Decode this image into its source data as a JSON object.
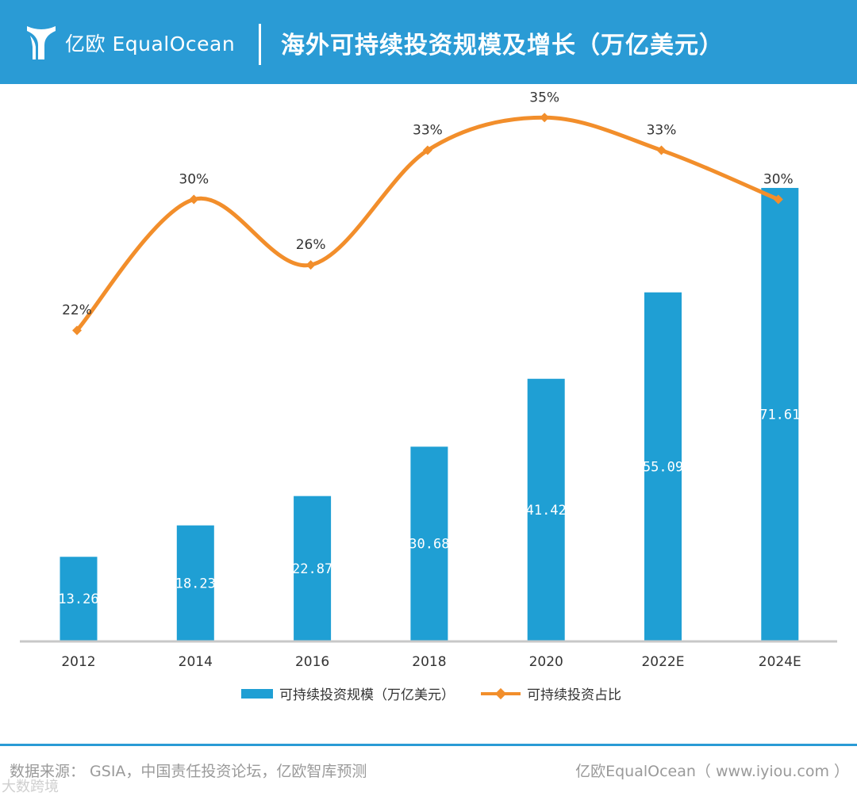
{
  "header": {
    "brand": "亿欧 EqualOcean",
    "title": "海外可持续投资规模及增长（万亿美元）",
    "background": "#2a9bd5"
  },
  "chart_data": {
    "type": "bar",
    "title": "海外可持续投资规模及增长（万亿美元）",
    "categories": [
      "2012",
      "2014",
      "2016",
      "2018",
      "2020",
      "2022E",
      "2024E"
    ],
    "series": [
      {
        "name": "可持续投资规模（万亿美元）",
        "type": "bar",
        "values": [
          13.26,
          18.23,
          22.87,
          30.68,
          41.42,
          55.09,
          71.61
        ],
        "labels": [
          "13.26",
          "18.23",
          "22.87",
          "30.68",
          "41.42",
          "55.09",
          "71.61"
        ],
        "color": "#1f9fd4"
      },
      {
        "name": "可持续投资占比",
        "type": "line",
        "values": [
          22,
          30,
          26,
          33,
          35,
          33,
          30
        ],
        "labels": [
          "22%",
          "30%",
          "26%",
          "33%",
          "35%",
          "33%",
          "30%"
        ],
        "color": "#f28e2b"
      }
    ],
    "ylim_bar": [
      0,
      75
    ],
    "ylim_line": [
      0,
      50
    ],
    "grid": false,
    "legend_position": "bottom"
  },
  "footer": {
    "source": "数据来源： GSIA，中国责任投资论坛，亿欧智库预测",
    "credit": "亿欧EqualOcean（ www.iyiou.com ）"
  },
  "watermark": "大数跨境"
}
